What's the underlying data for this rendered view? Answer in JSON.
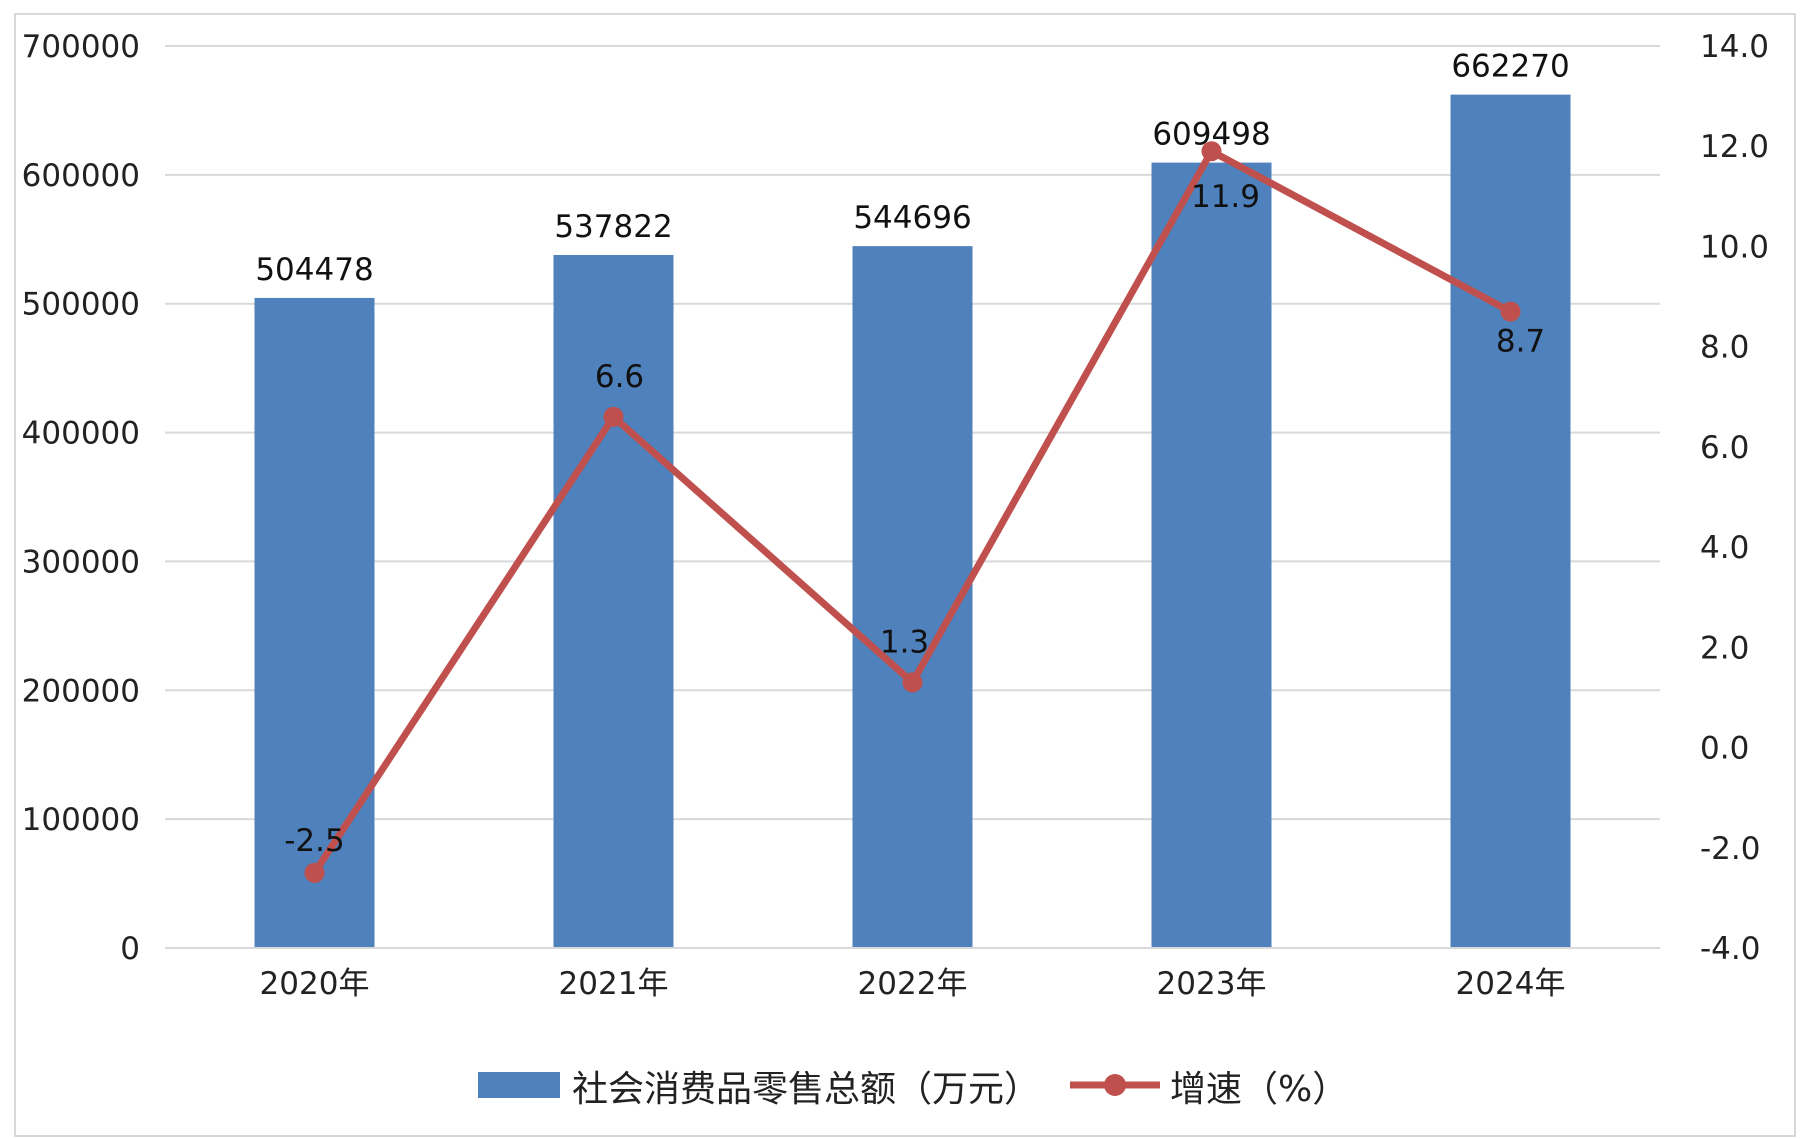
{
  "chart_data": {
    "type": "bar",
    "categories": [
      "2020年",
      "2021年",
      "2022年",
      "2023年",
      "2024年"
    ],
    "series": [
      {
        "name": "社会消费品零售总额（万元）",
        "kind": "bar",
        "axis": "left",
        "values": [
          504478,
          537822,
          544696,
          609498,
          662270
        ],
        "labels": [
          "504478",
          "537822",
          "544696",
          "609498",
          "662270"
        ]
      },
      {
        "name": "增速（%）",
        "kind": "line",
        "axis": "right",
        "values": [
          -2.5,
          6.6,
          1.3,
          11.9,
          8.7
        ],
        "labels": [
          "-2.5",
          "6.6",
          "1.3",
          "11.9",
          "8.7"
        ]
      }
    ],
    "y_left": {
      "ylim": [
        0,
        700000
      ],
      "ticks": [
        0,
        100000,
        200000,
        300000,
        400000,
        500000,
        600000,
        700000
      ],
      "tick_labels": [
        "0",
        "100000",
        "200000",
        "300000",
        "400000",
        "500000",
        "600000",
        "700000"
      ]
    },
    "y_right": {
      "ylim": [
        -4,
        14
      ],
      "ticks": [
        -4,
        -2,
        0,
        2,
        4,
        6,
        8,
        10,
        12,
        14
      ],
      "tick_labels": [
        "-4.0",
        "-2.0",
        "0.0",
        "2.0",
        "4.0",
        "6.0",
        "8.0",
        "10.0",
        "12.0",
        "14.0"
      ]
    },
    "grid": true,
    "legend": "bottom",
    "colors": {
      "bar": "#4F81BD",
      "line": "#C0504D",
      "grid": "#D9D9D9",
      "frame": "#D9D9D9",
      "text": "#222222"
    }
  }
}
